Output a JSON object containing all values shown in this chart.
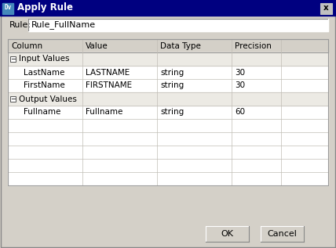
{
  "title": "Apply Rule",
  "title_bg": "#000080",
  "title_fg": "#FFFFFF",
  "title_icon": "Dv",
  "dialog_bg": "#D4D0C8",
  "rule_label": "Rule:",
  "rule_value": "Rule_FullName",
  "table_headers": [
    "Column",
    "Value",
    "Data Type",
    "Precision"
  ],
  "group_rows": [
    {
      "label": "Input Values",
      "is_group": true
    },
    {
      "col": "LastName",
      "val": "LASTNAME",
      "dtype": "string",
      "prec": "30",
      "is_group": false
    },
    {
      "col": "FirstName",
      "val": "FIRSTNAME",
      "dtype": "string",
      "prec": "30",
      "is_group": false
    },
    {
      "label": "Output Values",
      "is_group": true
    },
    {
      "col": "Fullname",
      "val": "Fullname",
      "dtype": "string",
      "prec": "60",
      "is_group": false
    },
    {
      "col": "",
      "val": "",
      "dtype": "",
      "prec": "",
      "is_group": false
    },
    {
      "col": "",
      "val": "",
      "dtype": "",
      "prec": "",
      "is_group": false
    },
    {
      "col": "",
      "val": "",
      "dtype": "",
      "prec": "",
      "is_group": false
    },
    {
      "col": "",
      "val": "",
      "dtype": "",
      "prec": "",
      "is_group": false
    },
    {
      "col": "",
      "val": "",
      "dtype": "",
      "prec": "",
      "is_group": false
    }
  ],
  "btn_ok": "OK",
  "btn_cancel": "Cancel",
  "text_color": "#000000",
  "grid_color": "#C0BDB5",
  "close_btn": "x"
}
